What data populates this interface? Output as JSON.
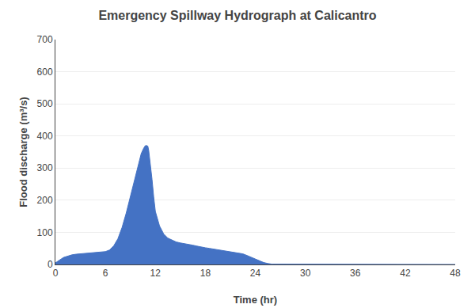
{
  "chart_data": {
    "type": "area",
    "title": "Emergency Spillway Hydrograph at Calicantro",
    "xlabel": "Time (hr)",
    "ylabel": "Flood discharge (m³/s)",
    "x": [
      0,
      0.25,
      0.5,
      0.75,
      1.0,
      1.5,
      2.0,
      2.5,
      3.0,
      3.5,
      4.0,
      4.5,
      5.0,
      5.5,
      6.0,
      6.5,
      7.0,
      7.5,
      8.0,
      8.5,
      9.0,
      9.5,
      10.0,
      10.3,
      10.6,
      10.8,
      11.0,
      11.1,
      11.2,
      11.4,
      11.6,
      11.8,
      12.0,
      12.5,
      13.0,
      13.5,
      14.0,
      14.5,
      15.0,
      15.5,
      16.0,
      16.5,
      17.0,
      17.5,
      18.0,
      18.5,
      19.0,
      19.5,
      20.0,
      20.5,
      21.0,
      21.5,
      22.0,
      22.5,
      23.0,
      23.5,
      24.0,
      24.5,
      25.0,
      25.5,
      26.0,
      48.0
    ],
    "values": [
      5,
      10,
      15,
      18,
      22,
      26,
      30,
      32,
      33,
      34,
      35,
      36,
      37,
      38,
      40,
      45,
      58,
      80,
      115,
      160,
      210,
      265,
      315,
      345,
      362,
      370,
      370,
      368,
      355,
      315,
      265,
      210,
      165,
      120,
      95,
      82,
      75,
      70,
      67,
      65,
      62,
      60,
      57,
      54,
      52,
      50,
      48,
      46,
      44,
      42,
      40,
      38,
      36,
      33,
      28,
      22,
      16,
      10,
      6,
      3,
      1,
      0
    ],
    "color": "#4472C4",
    "xlim": [
      0,
      48
    ],
    "ylim": [
      0,
      700
    ],
    "xticks": [
      0,
      6,
      12,
      18,
      24,
      30,
      36,
      42,
      48
    ],
    "yticks": [
      0,
      100,
      200,
      300,
      400,
      500,
      600,
      700
    ],
    "grid": true
  }
}
